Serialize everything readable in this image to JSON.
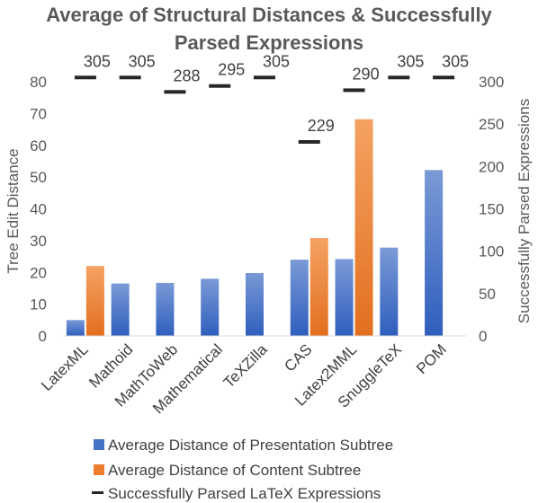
{
  "chart_data": {
    "type": "bar",
    "title_lines": [
      "Average of Structural Distances & Successfully",
      "Parsed Expressions"
    ],
    "ylabel": "Tree Edit Distance",
    "y2label": "Successfully Parsed Expressions",
    "ylim": [
      0,
      80
    ],
    "y2lim": [
      0,
      300
    ],
    "yticks": [
      "0",
      "10",
      "20",
      "30",
      "40",
      "50",
      "60",
      "70",
      "80"
    ],
    "y2ticks": [
      "0",
      "50",
      "100",
      "150",
      "200",
      "250",
      "300"
    ],
    "categories": [
      "LatexML",
      "Mathoid",
      "MathToWeb",
      "Mathematical",
      "TeXZilla",
      "CAS",
      "Latex2MML",
      "SnuggleTeX",
      "POM"
    ],
    "series": [
      {
        "name": "Average Distance of Presentation Subtree",
        "kind": "bar",
        "axis": "left",
        "color": "#4472c4",
        "values": [
          5,
          16.5,
          16.7,
          18,
          19.8,
          24,
          24.2,
          27.8,
          52.2
        ]
      },
      {
        "name": "Average Distance of Content Subtree",
        "kind": "bar",
        "axis": "left",
        "color": "#ed7d31",
        "values": [
          22,
          null,
          null,
          null,
          null,
          30.8,
          68.2,
          null,
          null
        ]
      },
      {
        "name": "Successfully Parsed LaTeX Expressions",
        "kind": "marker",
        "axis": "right",
        "color": "#262626",
        "values": [
          305,
          305,
          288,
          295,
          305,
          229,
          290,
          305,
          305
        ],
        "labels": [
          "305",
          "305",
          "288",
          "295",
          "305",
          "229",
          "290",
          "305",
          "305"
        ]
      }
    ],
    "legend_position": "bottom",
    "grid": false
  }
}
